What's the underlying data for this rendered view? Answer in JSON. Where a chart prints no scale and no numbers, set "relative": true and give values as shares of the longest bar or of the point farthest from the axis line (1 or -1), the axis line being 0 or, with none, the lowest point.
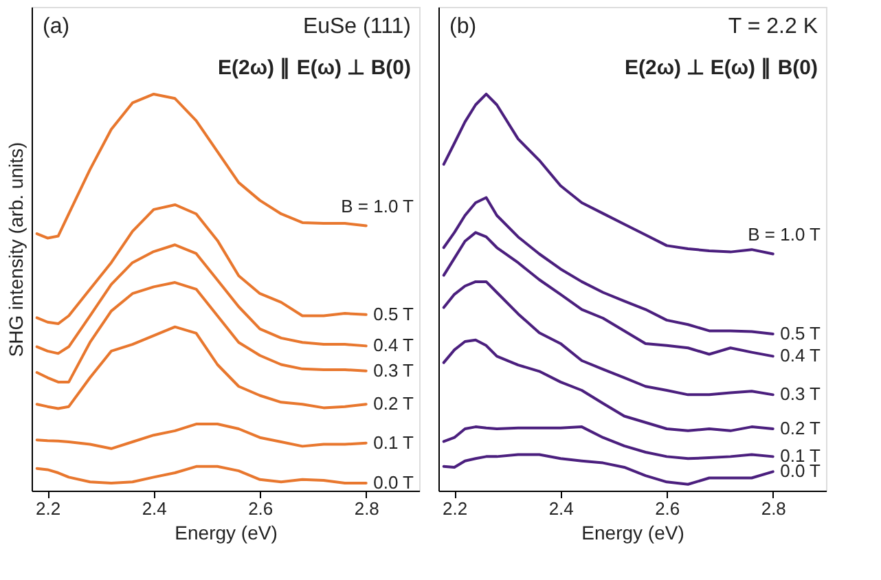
{
  "chart_data": [
    {
      "type": "line",
      "relative": true,
      "xlabel": "Energy (eV)",
      "ylabel": "SHG intensity (arb. units)",
      "tick_labels": "x",
      "annotations": [
        "(a)",
        "EuSe (111)",
        "E(2ω) ∥ E(ω) ⊥ B(0)"
      ],
      "x": [
        2.18,
        2.2,
        2.22,
        2.24,
        2.28,
        2.32,
        2.36,
        2.4,
        2.44,
        2.48,
        2.52,
        2.56,
        2.6,
        2.64,
        2.68,
        2.72,
        2.76,
        2.8
      ],
      "xlim": [
        2.17,
        2.9
      ],
      "xticks": [
        2.2,
        2.4,
        2.6,
        2.8
      ],
      "series": [
        {
          "name": "B = 1.0 T",
          "color": "#e8772e",
          "values": [
            0.648,
            0.637,
            0.642,
            0.698,
            0.81,
            0.911,
            0.978,
            1.0,
            0.989,
            0.933,
            0.855,
            0.777,
            0.732,
            0.698,
            0.676,
            0.674,
            0.674,
            0.668
          ]
        },
        {
          "name": "0.5 T",
          "color": "#e8772e",
          "values": [
            0.436,
            0.425,
            0.421,
            0.441,
            0.508,
            0.575,
            0.654,
            0.709,
            0.721,
            0.698,
            0.631,
            0.542,
            0.497,
            0.475,
            0.441,
            0.441,
            0.447,
            0.444
          ]
        },
        {
          "name": "0.4 T",
          "color": "#e8772e",
          "values": [
            0.363,
            0.352,
            0.346,
            0.363,
            0.441,
            0.52,
            0.575,
            0.603,
            0.62,
            0.598,
            0.531,
            0.464,
            0.408,
            0.385,
            0.374,
            0.369,
            0.369,
            0.365
          ]
        },
        {
          "name": "0.3 T",
          "color": "#e8772e",
          "values": [
            0.298,
            0.285,
            0.274,
            0.274,
            0.374,
            0.453,
            0.497,
            0.514,
            0.525,
            0.508,
            0.441,
            0.374,
            0.341,
            0.318,
            0.307,
            0.305,
            0.305,
            0.302
          ]
        },
        {
          "name": "0.2 T",
          "color": "#e8772e",
          "values": [
            0.218,
            0.212,
            0.207,
            0.212,
            0.285,
            0.352,
            0.369,
            0.391,
            0.413,
            0.397,
            0.318,
            0.263,
            0.24,
            0.223,
            0.218,
            0.209,
            0.212,
            0.218
          ]
        },
        {
          "name": "0.1 T",
          "color": "#e8772e",
          "values": [
            0.128,
            0.126,
            0.125,
            0.123,
            0.117,
            0.106,
            0.123,
            0.14,
            0.151,
            0.168,
            0.168,
            0.156,
            0.134,
            0.123,
            0.112,
            0.117,
            0.117,
            0.12
          ]
        },
        {
          "name": "0.0 T",
          "color": "#e8772e",
          "values": [
            0.056,
            0.053,
            0.045,
            0.034,
            0.022,
            0.019,
            0.022,
            0.034,
            0.045,
            0.061,
            0.061,
            0.05,
            0.028,
            0.022,
            0.028,
            0.026,
            0.019,
            0.019
          ]
        }
      ]
    },
    {
      "type": "line",
      "relative": true,
      "xlabel": "Energy (eV)",
      "tick_labels": "x",
      "annotations": [
        "(b)",
        "T = 2.2 K",
        "E(2ω) ⊥ E(ω) ∥ B(0)"
      ],
      "x": [
        2.18,
        2.2,
        2.22,
        2.24,
        2.26,
        2.28,
        2.32,
        2.36,
        2.4,
        2.44,
        2.48,
        2.52,
        2.56,
        2.6,
        2.64,
        2.68,
        2.72,
        2.76,
        2.8
      ],
      "xlim": [
        2.17,
        2.9
      ],
      "xticks": [
        2.2,
        2.4,
        2.6,
        2.8
      ],
      "series": [
        {
          "name": "B = 1.0 T",
          "color": "#4b1f7e",
          "values": [
            0.823,
            0.876,
            0.93,
            0.973,
            1.0,
            0.973,
            0.887,
            0.833,
            0.769,
            0.726,
            0.699,
            0.672,
            0.645,
            0.618,
            0.61,
            0.605,
            0.602,
            0.608,
            0.597
          ]
        },
        {
          "name": "0.5 T",
          "color": "#4b1f7e",
          "values": [
            0.613,
            0.651,
            0.694,
            0.726,
            0.739,
            0.694,
            0.64,
            0.597,
            0.559,
            0.527,
            0.5,
            0.478,
            0.457,
            0.43,
            0.419,
            0.403,
            0.403,
            0.401,
            0.395
          ]
        },
        {
          "name": "0.4 T",
          "color": "#4b1f7e",
          "values": [
            0.543,
            0.586,
            0.629,
            0.651,
            0.64,
            0.613,
            0.575,
            0.532,
            0.495,
            0.457,
            0.435,
            0.403,
            0.371,
            0.366,
            0.36,
            0.344,
            0.36,
            0.349,
            0.339
          ]
        },
        {
          "name": "0.3 T",
          "color": "#4b1f7e",
          "values": [
            0.462,
            0.495,
            0.516,
            0.527,
            0.527,
            0.5,
            0.446,
            0.398,
            0.371,
            0.328,
            0.306,
            0.285,
            0.263,
            0.253,
            0.242,
            0.242,
            0.247,
            0.251,
            0.242
          ]
        },
        {
          "name": "0.2 T",
          "color": "#4b1f7e",
          "values": [
            0.323,
            0.355,
            0.376,
            0.38,
            0.366,
            0.339,
            0.317,
            0.301,
            0.274,
            0.253,
            0.22,
            0.188,
            0.172,
            0.156,
            0.151,
            0.156,
            0.151,
            0.161,
            0.156
          ]
        },
        {
          "name": "0.1 T",
          "color": "#4b1f7e",
          "values": [
            0.124,
            0.134,
            0.156,
            0.161,
            0.158,
            0.156,
            0.158,
            0.158,
            0.158,
            0.161,
            0.134,
            0.113,
            0.097,
            0.086,
            0.081,
            0.083,
            0.086,
            0.091,
            0.086
          ]
        },
        {
          "name": "0.0 T",
          "color": "#4b1f7e",
          "values": [
            0.061,
            0.059,
            0.075,
            0.081,
            0.086,
            0.086,
            0.091,
            0.091,
            0.081,
            0.075,
            0.07,
            0.059,
            0.038,
            0.022,
            0.016,
            0.032,
            0.032,
            0.032,
            0.048
          ]
        }
      ]
    }
  ]
}
